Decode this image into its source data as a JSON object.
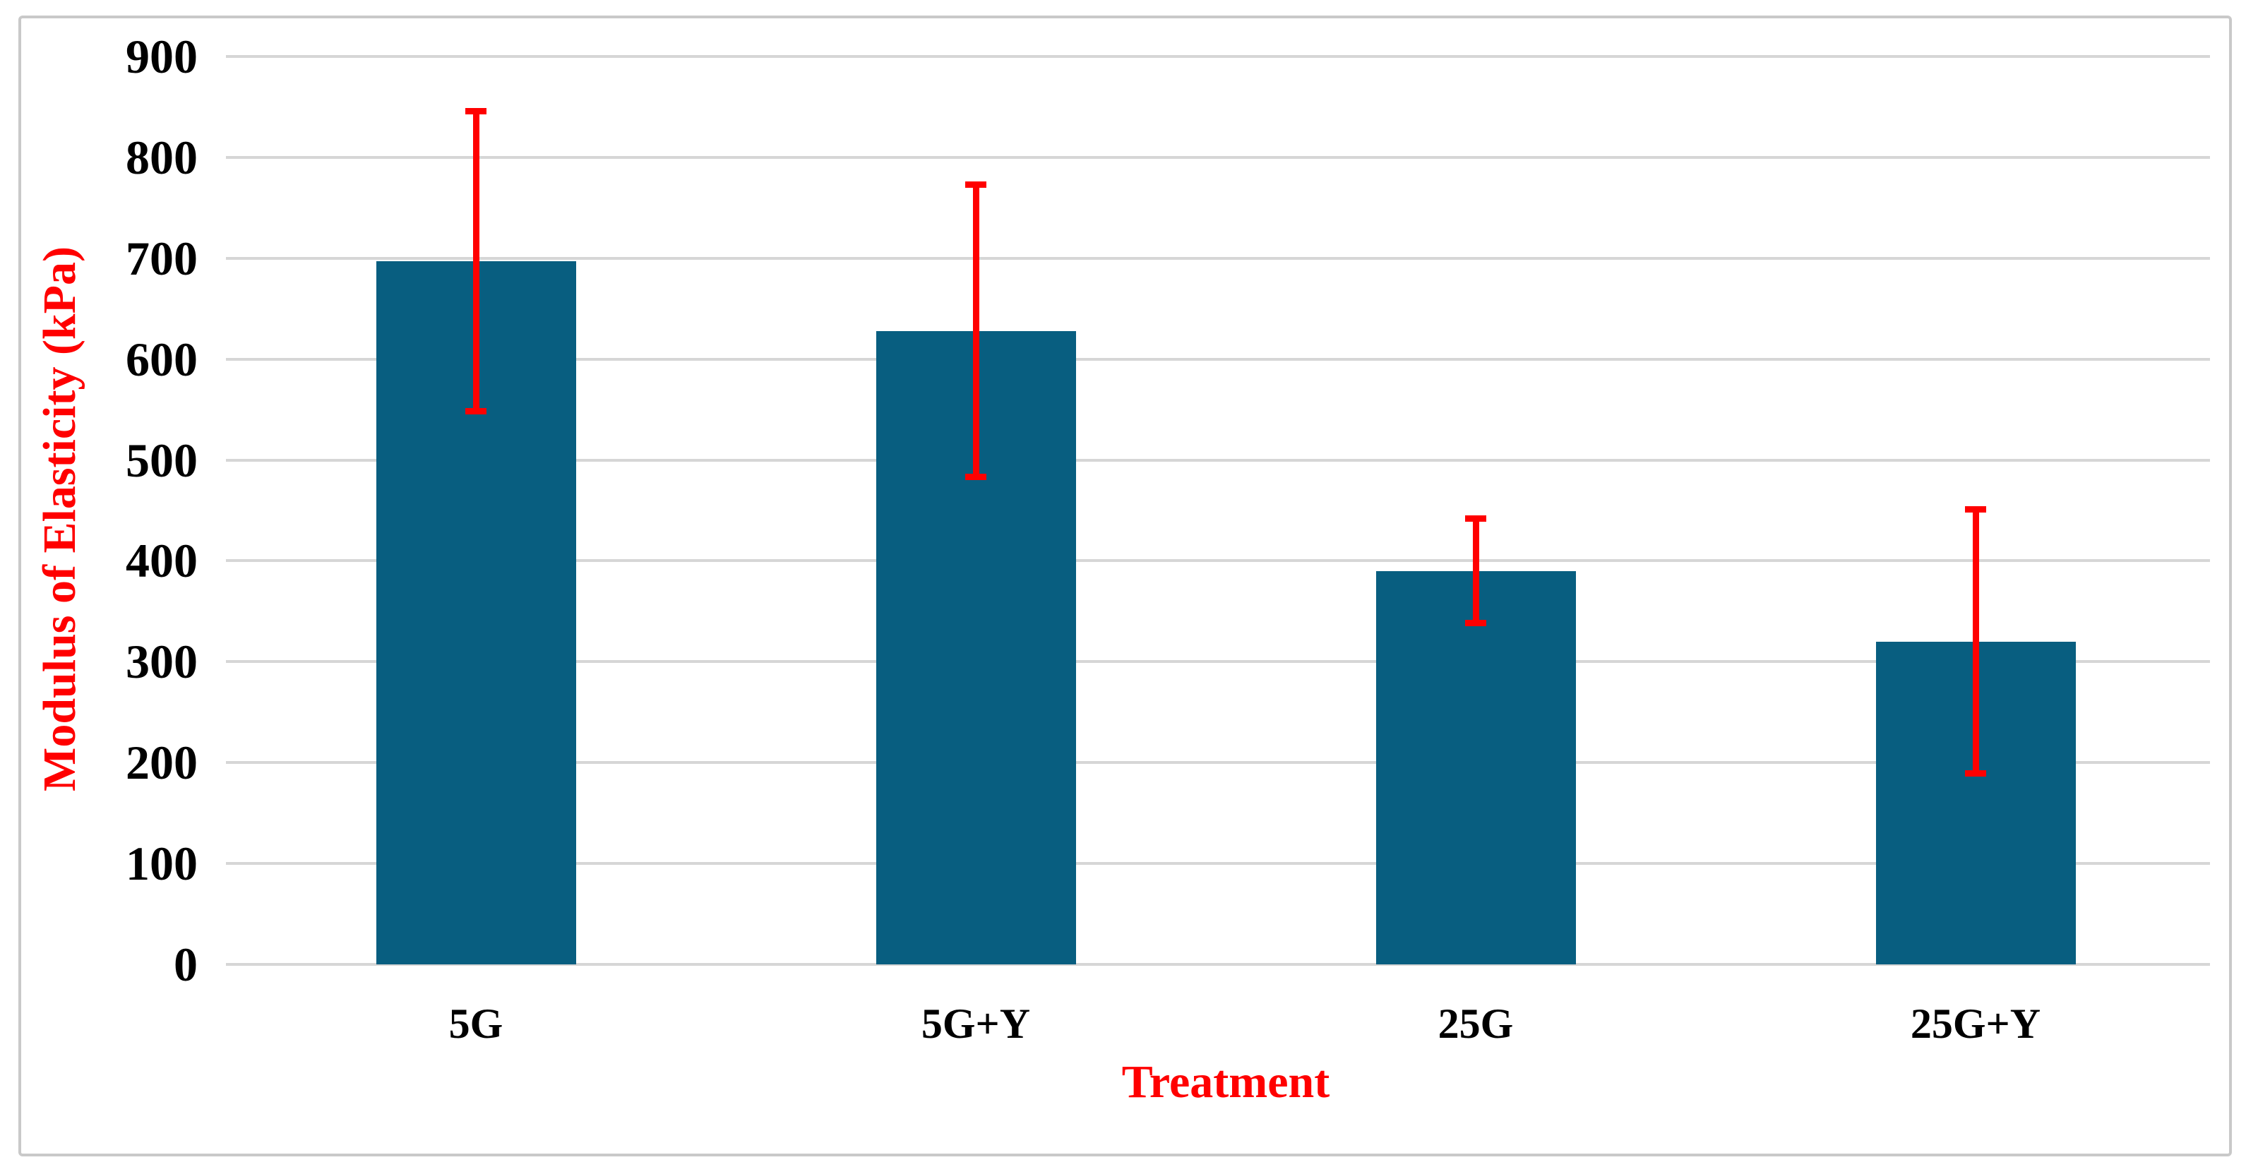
{
  "chart_data": {
    "type": "bar",
    "title": "",
    "categories": [
      "5G",
      "5G+Y",
      "25G",
      "25G+Y"
    ],
    "values": [
      697,
      628,
      390,
      320
    ],
    "error_bars": {
      "upper": [
        849,
        776,
        445,
        454
      ],
      "lower": [
        545,
        480,
        335,
        186
      ]
    },
    "xlabel": "Treatment",
    "ylabel": "Modulus of Elasticity (kPa)",
    "ylim": [
      0,
      900
    ],
    "yticks": [
      0,
      100,
      200,
      300,
      400,
      500,
      600,
      700,
      800,
      900
    ],
    "grid": "horizontal-only",
    "legend": "none",
    "colors": {
      "bar_fill": "#085E80",
      "error_bar": "#FF0000",
      "axis_title": "#FF0000",
      "tick_label": "#000000",
      "gridline": "#D6D6D6",
      "frame_border": "#C9C9C9",
      "background": "#FFFFFF"
    }
  }
}
